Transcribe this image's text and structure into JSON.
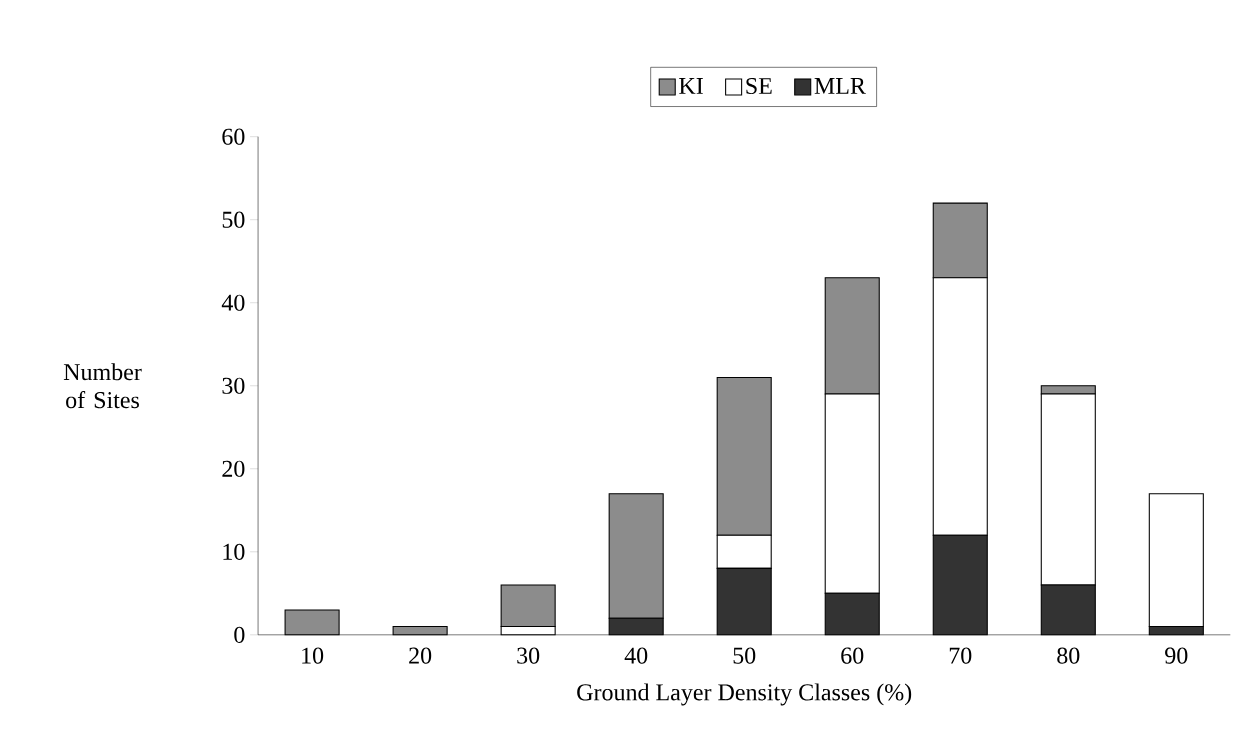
{
  "chart_data": {
    "type": "bar",
    "stacked": true,
    "xlabel": "Ground Layer Density Classes (%)",
    "ylabel": "Number of Sites",
    "categories": [
      "10",
      "20",
      "30",
      "40",
      "50",
      "60",
      "70",
      "80",
      "90"
    ],
    "series": [
      {
        "name": "MLR",
        "color": "#333333",
        "values": [
          0,
          0,
          0,
          2,
          8,
          5,
          12,
          6,
          1
        ]
      },
      {
        "name": "SE",
        "color": "#ffffff",
        "values": [
          0,
          0,
          1,
          0,
          4,
          24,
          31,
          23,
          16
        ]
      },
      {
        "name": "KI",
        "color": "#8c8c8c",
        "values": [
          3,
          1,
          5,
          15,
          19,
          14,
          9,
          1,
          0
        ]
      }
    ],
    "ylim": [
      0,
      60
    ],
    "yticks": [
      0,
      10,
      20,
      30,
      40,
      50,
      60
    ],
    "legend": "top",
    "grid": false
  }
}
